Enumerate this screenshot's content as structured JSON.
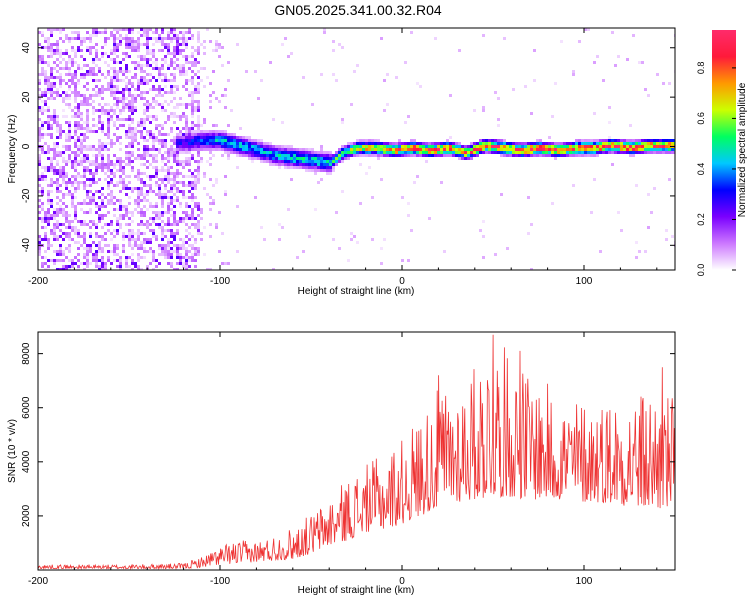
{
  "page_title": "GN05.2025.341.00.32.R04",
  "colors": {
    "line": "#ee3333",
    "frame": "#000000",
    "colormap": [
      "#ffffff",
      "#cc77ff",
      "#7a00ff",
      "#0000ff",
      "#00c8ff",
      "#00ff60",
      "#ccff00",
      "#ff9900",
      "#ff1a3a",
      "#ff2b6b"
    ]
  },
  "chart_data": [
    {
      "type": "heatmap",
      "title": "GN05.2025.341.00.32.R04",
      "xlabel": "Height of straight line (km)",
      "ylabel": "Frequency (Hz)",
      "xlim": [
        -200,
        150
      ],
      "ylim": [
        -50,
        48
      ],
      "xticks": [
        {
          "value": -200,
          "label": "-200"
        },
        {
          "value": -100,
          "label": "-100"
        },
        {
          "value": 0,
          "label": "0"
        },
        {
          "value": 100,
          "label": "100"
        }
      ],
      "yticks": [
        {
          "value": -40,
          "label": "-40"
        },
        {
          "value": -20,
          "label": "-20"
        },
        {
          "value": 0,
          "label": "0"
        },
        {
          "value": 20,
          "label": "20"
        },
        {
          "value": 40,
          "label": "40"
        }
      ],
      "ridge": {
        "x": [
          -120,
          -110,
          -100,
          -90,
          -80,
          -70,
          -60,
          -50,
          -40,
          -33,
          -25,
          -15,
          -5,
          5,
          15,
          25,
          35,
          45,
          55,
          65,
          75,
          85,
          95,
          105,
          115,
          125,
          135,
          150
        ],
        "frequency": [
          2,
          3,
          3,
          1,
          -1,
          -3,
          -4,
          -5,
          -6,
          -2,
          0,
          0,
          -1,
          0,
          -1,
          0,
          -2,
          1,
          0,
          -1,
          0,
          -1,
          0,
          0,
          1,
          0,
          1,
          1
        ],
        "amplitude": [
          0.3,
          0.4,
          0.45,
          0.45,
          0.45,
          0.45,
          0.5,
          0.5,
          0.5,
          0.6,
          0.7,
          0.8,
          0.8,
          0.85,
          0.85,
          0.85,
          0.85,
          0.9,
          0.88,
          0.88,
          0.88,
          0.88,
          0.88,
          0.88,
          0.88,
          0.88,
          0.88,
          0.88
        ]
      },
      "colorbar": {
        "label": "Normalized spectral amplitude",
        "range": [
          0,
          0.95
        ],
        "ticks": [
          {
            "value": 0.0,
            "label": "0.0"
          },
          {
            "value": 0.2,
            "label": "0.2"
          },
          {
            "value": 0.4,
            "label": "0.4"
          },
          {
            "value": 0.6,
            "label": "0.6"
          },
          {
            "value": 0.8,
            "label": "0.8"
          }
        ]
      }
    },
    {
      "type": "line",
      "xlabel": "Height of straight line (km)",
      "ylabel": "SNR (10 * v/v)",
      "xlim": [
        -200,
        150
      ],
      "ylim": [
        0,
        8800
      ],
      "xticks": [
        {
          "value": -200,
          "label": "-200"
        },
        {
          "value": -100,
          "label": "-100"
        },
        {
          "value": 0,
          "label": "0"
        },
        {
          "value": 100,
          "label": "100"
        }
      ],
      "yticks": [
        {
          "value": 2000,
          "label": "2000"
        },
        {
          "value": 4000,
          "label": "4000"
        },
        {
          "value": 6000,
          "label": "6000"
        },
        {
          "value": 8000,
          "label": "8000"
        }
      ],
      "envelope": {
        "x": [
          -200,
          -150,
          -120,
          -110,
          -100,
          -90,
          -80,
          -70,
          -60,
          -50,
          -40,
          -30,
          -20,
          -10,
          0,
          10,
          20,
          30,
          40,
          50,
          60,
          70,
          80,
          90,
          100,
          110,
          120,
          130,
          140,
          150
        ],
        "low": [
          50,
          50,
          50,
          100,
          200,
          250,
          300,
          350,
          400,
          600,
          900,
          1100,
          1400,
          1500,
          1700,
          2000,
          2300,
          2500,
          2600,
          2700,
          2700,
          2600,
          2600,
          2600,
          2500,
          2500,
          2400,
          2300,
          2200,
          2300
        ],
        "high": [
          200,
          200,
          250,
          500,
          900,
          1100,
          1100,
          1300,
          1600,
          2100,
          2700,
          3400,
          3900,
          4300,
          4900,
          5800,
          6700,
          7000,
          7600,
          8700,
          8000,
          7400,
          6900,
          6400,
          6400,
          6400,
          6600,
          6600,
          6800,
          6400
        ]
      },
      "peaks": [
        {
          "x": 20,
          "y": 7200
        },
        {
          "x": 50,
          "y": 8700
        },
        {
          "x": 65,
          "y": 8100
        },
        {
          "x": 143,
          "y": 7500
        }
      ]
    }
  ]
}
